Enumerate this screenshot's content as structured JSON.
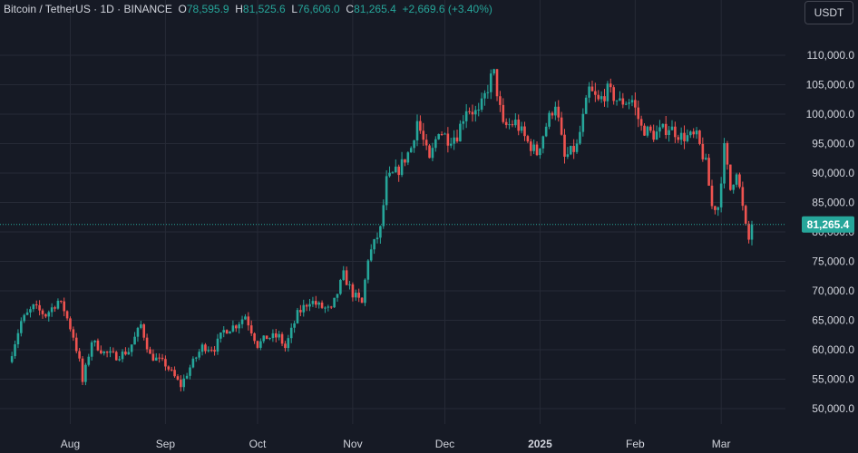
{
  "header": {
    "symbol": "Bitcoin / TetherUS · 1D · BINANCE",
    "open_label": "O",
    "open": "78,595.9",
    "high_label": "H",
    "high": "81,525.6",
    "low_label": "L",
    "low": "76,606.0",
    "close_label": "C",
    "close": "81,265.4",
    "change": "+2,669.6 (+3.40%)"
  },
  "currency_button": "USDT",
  "last_price_label": "81,265.4",
  "colors": {
    "up": "#26a69a",
    "down": "#ef5350",
    "background": "#161a25",
    "grid": "#262a36",
    "text": "#d1d4dc"
  },
  "chart_data": {
    "type": "candlestick",
    "x_labels": [
      "Aug",
      "Sep",
      "Oct",
      "Nov",
      "Dec",
      "2025",
      "Feb",
      "Mar"
    ],
    "y_ticks": [
      "110,000.0",
      "105,000.0",
      "100,000.0",
      "95,000.0",
      "90,000.0",
      "85,000.0",
      "80,000.0",
      "75,000.0",
      "70,000.0",
      "65,000.0",
      "60,000.0",
      "55,000.0",
      "50,000.0"
    ],
    "ylim": [
      46000,
      113000
    ],
    "last_price": 81265.4,
    "close_series": [
      [
        "2024-07-12",
        57900
      ],
      [
        "2024-07-16",
        64800
      ],
      [
        "2024-07-20",
        67200
      ],
      [
        "2024-07-24",
        65900
      ],
      [
        "2024-07-28",
        68300
      ],
      [
        "2024-07-30",
        66800
      ],
      [
        "2024-08-02",
        62300
      ],
      [
        "2024-08-04",
        58000
      ],
      [
        "2024-08-05",
        54500
      ],
      [
        "2024-08-08",
        61500
      ],
      [
        "2024-08-12",
        59500
      ],
      [
        "2024-08-16",
        58900
      ],
      [
        "2024-08-20",
        59800
      ],
      [
        "2024-08-24",
        64200
      ],
      [
        "2024-08-27",
        59000
      ],
      [
        "2024-09-01",
        57500
      ],
      [
        "2024-09-06",
        53900
      ],
      [
        "2024-09-09",
        57000
      ],
      [
        "2024-09-13",
        60500
      ],
      [
        "2024-09-17",
        60300
      ],
      [
        "2024-09-20",
        63200
      ],
      [
        "2024-09-24",
        64200
      ],
      [
        "2024-09-27",
        65800
      ],
      [
        "2024-10-01",
        60800
      ],
      [
        "2024-10-04",
        62100
      ],
      [
        "2024-10-08",
        62200
      ],
      [
        "2024-10-10",
        60300
      ],
      [
        "2024-10-14",
        66000
      ],
      [
        "2024-10-18",
        68400
      ],
      [
        "2024-10-21",
        67400
      ],
      [
        "2024-10-25",
        66600
      ],
      [
        "2024-10-29",
        72700
      ],
      [
        "2024-11-01",
        69500
      ],
      [
        "2024-11-04",
        67800
      ],
      [
        "2024-11-06",
        75600
      ],
      [
        "2024-11-10",
        80400
      ],
      [
        "2024-11-12",
        88700
      ],
      [
        "2024-11-16",
        90600
      ],
      [
        "2024-11-20",
        94300
      ],
      [
        "2024-11-22",
        98900
      ],
      [
        "2024-11-26",
        91900
      ],
      [
        "2024-11-29",
        97500
      ],
      [
        "2024-12-02",
        95800
      ],
      [
        "2024-12-05",
        96500
      ],
      [
        "2024-12-08",
        101100
      ],
      [
        "2024-12-12",
        100000
      ],
      [
        "2024-12-16",
        106100
      ],
      [
        "2024-12-17",
        106800
      ],
      [
        "2024-12-20",
        97800
      ],
      [
        "2024-12-24",
        98600
      ],
      [
        "2024-12-28",
        95200
      ],
      [
        "2024-12-31",
        93400
      ],
      [
        "2025-01-03",
        98100
      ],
      [
        "2025-01-06",
        102000
      ],
      [
        "2025-01-09",
        92500
      ],
      [
        "2025-01-13",
        94500
      ],
      [
        "2025-01-17",
        104100
      ],
      [
        "2025-01-20",
        102100
      ],
      [
        "2025-01-23",
        104000
      ],
      [
        "2025-01-27",
        102000
      ],
      [
        "2025-01-31",
        102400
      ],
      [
        "2025-02-03",
        97700
      ],
      [
        "2025-02-07",
        96500
      ],
      [
        "2025-02-12",
        97800
      ],
      [
        "2025-02-16",
        96200
      ],
      [
        "2025-02-21",
        96100
      ],
      [
        "2025-02-24",
        91500
      ],
      [
        "2025-02-26",
        84300
      ],
      [
        "2025-02-28",
        84300
      ],
      [
        "2025-03-02",
        94200
      ],
      [
        "2025-03-04",
        87200
      ],
      [
        "2025-03-06",
        90600
      ],
      [
        "2025-03-09",
        80700
      ],
      [
        "2025-03-10",
        78600
      ],
      [
        "2025-03-11",
        81265
      ]
    ]
  }
}
